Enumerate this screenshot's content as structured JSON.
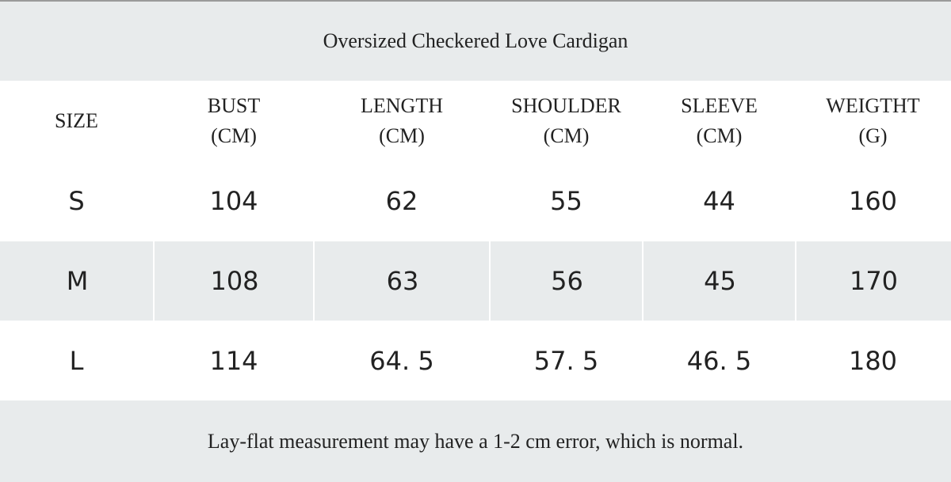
{
  "title": "Oversized Checkered Love Cardigan",
  "table": {
    "headers": [
      {
        "name": "SIZE"
      },
      {
        "name": "BUST",
        "unit": "(CM)"
      },
      {
        "name": "LENGTH",
        "unit": "(CM)"
      },
      {
        "name": "SHOULDER",
        "unit": "(CM)"
      },
      {
        "name": "SLEEVE",
        "unit": "(CM)"
      },
      {
        "name": "WEIGTHT",
        "unit": "(G)"
      }
    ],
    "rows": [
      [
        "S",
        "104",
        "62",
        "55",
        "44",
        "160"
      ],
      [
        "M",
        "108",
        "63",
        "56",
        "45",
        "170"
      ],
      [
        "L",
        "114",
        "64. 5",
        "57. 5",
        "46. 5",
        "180"
      ]
    ]
  },
  "note": "Lay-flat measurement may have a 1-2 cm error, which is normal."
}
